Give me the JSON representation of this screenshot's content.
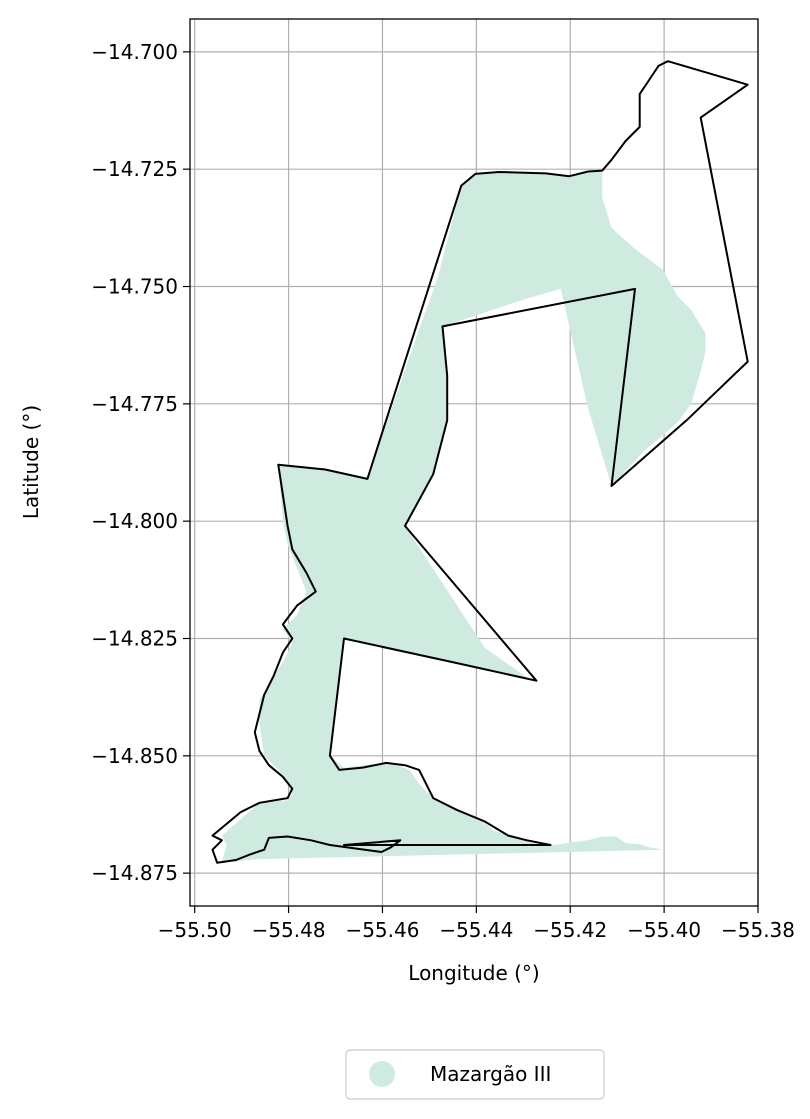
{
  "chart_data": {
    "type": "map",
    "title": "",
    "xlabel": "Longitude (°)",
    "ylabel": "Latitude (°)",
    "xlim": [
      -55.501,
      -55.38
    ],
    "ylim": [
      -14.882,
      -14.693
    ],
    "grid": true,
    "legend_position": "bottom-center",
    "xticks": [
      -55.5,
      -55.48,
      -55.46,
      -55.44,
      -55.42,
      -55.4,
      -55.38
    ],
    "xtick_labels": [
      "−55.50",
      "−55.48",
      "−55.46",
      "−55.44",
      "−55.42",
      "−55.40",
      "−55.38"
    ],
    "yticks": [
      -14.7,
      -14.725,
      -14.75,
      -14.775,
      -14.8,
      -14.825,
      -14.85,
      -14.875
    ],
    "ytick_labels": [
      "−14.700",
      "−14.725",
      "−14.750",
      "−14.775",
      "−14.800",
      "−14.825",
      "−14.850",
      "−14.875"
    ],
    "series": [
      {
        "name": "Mazargão III",
        "fill_color": "#cfeade",
        "fill_polygon": [
          [
            -55.4432,
            -14.7285
          ],
          [
            -55.4402,
            -14.726
          ],
          [
            -55.4352,
            -14.7256
          ],
          [
            -55.4252,
            -14.7259
          ],
          [
            -55.4202,
            -14.7265
          ],
          [
            -55.4162,
            -14.7255
          ],
          [
            -55.4132,
            -14.7253
          ],
          [
            -55.4132,
            -14.731
          ],
          [
            -55.4112,
            -14.7375
          ],
          [
            -55.4062,
            -14.742
          ],
          [
            -55.4002,
            -14.7465
          ],
          [
            -55.3972,
            -14.752
          ],
          [
            -55.3942,
            -14.755
          ],
          [
            -55.3912,
            -14.76
          ],
          [
            -55.3912,
            -14.764
          ],
          [
            -55.3922,
            -14.768
          ],
          [
            -55.3942,
            -14.775
          ],
          [
            -55.3972,
            -14.779
          ],
          [
            -55.4042,
            -14.785
          ],
          [
            -55.4112,
            -14.7925
          ],
          [
            -55.4162,
            -14.776
          ],
          [
            -55.422,
            -14.7505
          ],
          [
            -55.429,
            -14.7525
          ],
          [
            -55.4472,
            -14.7585
          ],
          [
            -55.4462,
            -14.769
          ],
          [
            -55.4462,
            -14.7785
          ],
          [
            -55.4492,
            -14.79
          ],
          [
            -55.4552,
            -14.801
          ],
          [
            -55.4382,
            -14.827
          ],
          [
            -55.4282,
            -14.834
          ],
          [
            -55.4452,
            -14.83
          ],
          [
            -55.4682,
            -14.825
          ],
          [
            -55.4712,
            -14.85
          ],
          [
            -55.4682,
            -14.8525
          ],
          [
            -55.4642,
            -14.852
          ],
          [
            -55.4582,
            -14.8515
          ],
          [
            -55.4542,
            -14.853
          ],
          [
            -55.4522,
            -14.856
          ],
          [
            -55.4492,
            -14.859
          ],
          [
            -55.4442,
            -14.8615
          ],
          [
            -55.4392,
            -14.8635
          ],
          [
            -55.4362,
            -14.866
          ],
          [
            -55.4332,
            -14.867
          ],
          [
            -55.4302,
            -14.868
          ],
          [
            -55.4262,
            -14.869
          ],
          [
            -55.4232,
            -14.869
          ],
          [
            -55.4202,
            -14.8685
          ],
          [
            -55.4162,
            -14.868
          ],
          [
            -55.4132,
            -14.8672
          ],
          [
            -55.4102,
            -14.8672
          ],
          [
            -55.4082,
            -14.8686
          ],
          [
            -55.4052,
            -14.8688
          ],
          [
            -55.4032,
            -14.8695
          ],
          [
            -55.4002,
            -14.87
          ],
          [
            -55.4862,
            -14.872
          ],
          [
            -55.4912,
            -14.8725
          ],
          [
            -55.4942,
            -14.8725
          ],
          [
            -55.4932,
            -14.869
          ],
          [
            -55.4942,
            -14.867
          ],
          [
            -55.4862,
            -14.86
          ],
          [
            -55.4802,
            -14.8595
          ],
          [
            -55.4792,
            -14.858
          ],
          [
            -55.4802,
            -14.856
          ],
          [
            -55.4822,
            -14.853
          ],
          [
            -55.4852,
            -14.85
          ],
          [
            -55.4862,
            -14.843
          ],
          [
            -55.4862,
            -14.838
          ],
          [
            -55.4842,
            -14.835
          ],
          [
            -55.4812,
            -14.83
          ],
          [
            -55.4792,
            -14.826
          ],
          [
            -55.4812,
            -14.823
          ],
          [
            -55.4782,
            -14.82
          ],
          [
            -55.4762,
            -14.815
          ],
          [
            -55.4782,
            -14.81
          ],
          [
            -55.4802,
            -14.805
          ],
          [
            -55.4812,
            -14.8
          ],
          [
            -55.4822,
            -14.788
          ],
          [
            -55.4722,
            -14.789
          ],
          [
            -55.4632,
            -14.791
          ],
          [
            -55.4532,
            -14.762
          ],
          [
            -55.4482,
            -14.748
          ],
          [
            -55.4432,
            -14.7285
          ]
        ],
        "outline": [
          [
            -55.4432,
            -14.7285
          ],
          [
            -55.4402,
            -14.726
          ],
          [
            -55.4352,
            -14.7256
          ],
          [
            -55.4252,
            -14.7259
          ],
          [
            -55.4202,
            -14.7265
          ],
          [
            -55.4162,
            -14.7255
          ],
          [
            -55.4132,
            -14.7253
          ],
          [
            -55.4112,
            -14.723
          ],
          [
            -55.4082,
            -14.719
          ],
          [
            -55.4052,
            -14.716
          ],
          [
            -55.4052,
            -14.712
          ],
          [
            -55.4052,
            -14.709
          ],
          [
            -55.4032,
            -14.706
          ],
          [
            -55.4012,
            -14.703
          ],
          [
            -55.3992,
            -14.702
          ],
          [
            -55.3822,
            -14.707
          ],
          [
            -55.3922,
            -14.714
          ],
          [
            -55.3822,
            -14.766
          ],
          [
            -55.3952,
            -14.7785
          ],
          [
            -55.4112,
            -14.7925
          ],
          [
            -55.4062,
            -14.7505
          ],
          [
            -55.4472,
            -14.7585
          ],
          [
            -55.4462,
            -14.769
          ],
          [
            -55.4462,
            -14.7785
          ],
          [
            -55.4492,
            -14.79
          ],
          [
            -55.4552,
            -14.801
          ],
          [
            -55.4272,
            -14.834
          ],
          [
            -55.4452,
            -14.83
          ],
          [
            -55.4682,
            -14.825
          ],
          [
            -55.4712,
            -14.85
          ],
          [
            -55.4692,
            -14.853
          ],
          [
            -55.4642,
            -14.8525
          ],
          [
            -55.4592,
            -14.8515
          ],
          [
            -55.4552,
            -14.852
          ],
          [
            -55.4522,
            -14.853
          ],
          [
            -55.4512,
            -14.855
          ],
          [
            -55.4492,
            -14.859
          ],
          [
            -55.4442,
            -14.8615
          ],
          [
            -55.4382,
            -14.864
          ],
          [
            -55.4332,
            -14.867
          ],
          [
            -55.4292,
            -14.868
          ],
          [
            -55.4242,
            -14.869
          ],
          [
            -55.4682,
            -14.869
          ],
          [
            -55.4562,
            -14.868
          ],
          [
            -55.4582,
            -14.8695
          ],
          [
            -55.4602,
            -14.8705
          ],
          [
            -55.4712,
            -14.869
          ],
          [
            -55.4752,
            -14.868
          ],
          [
            -55.4802,
            -14.8672
          ],
          [
            -55.4842,
            -14.8675
          ],
          [
            -55.4852,
            -14.87
          ],
          [
            -55.4882,
            -14.871
          ],
          [
            -55.4912,
            -14.8722
          ],
          [
            -55.4952,
            -14.8728
          ],
          [
            -55.4962,
            -14.87
          ],
          [
            -55.4942,
            -14.868
          ],
          [
            -55.4962,
            -14.867
          ],
          [
            -55.4902,
            -14.862
          ],
          [
            -55.4862,
            -14.86
          ],
          [
            -55.4802,
            -14.859
          ],
          [
            -55.4792,
            -14.857
          ],
          [
            -55.4812,
            -14.8545
          ],
          [
            -55.4842,
            -14.852
          ],
          [
            -55.4862,
            -14.849
          ],
          [
            -55.4872,
            -14.845
          ],
          [
            -55.4862,
            -14.841
          ],
          [
            -55.4852,
            -14.837
          ],
          [
            -55.4832,
            -14.833
          ],
          [
            -55.4812,
            -14.828
          ],
          [
            -55.4792,
            -14.825
          ],
          [
            -55.4812,
            -14.822
          ],
          [
            -55.4782,
            -14.818
          ],
          [
            -55.4742,
            -14.815
          ],
          [
            -55.4762,
            -14.811
          ],
          [
            -55.4792,
            -14.806
          ],
          [
            -55.4802,
            -14.801
          ],
          [
            -55.4822,
            -14.788
          ],
          [
            -55.4722,
            -14.789
          ],
          [
            -55.4632,
            -14.791
          ],
          [
            -55.4432,
            -14.7285
          ]
        ]
      }
    ]
  },
  "legend": {
    "items": [
      {
        "label": "Mazargão III",
        "color": "#cfeade"
      }
    ]
  }
}
